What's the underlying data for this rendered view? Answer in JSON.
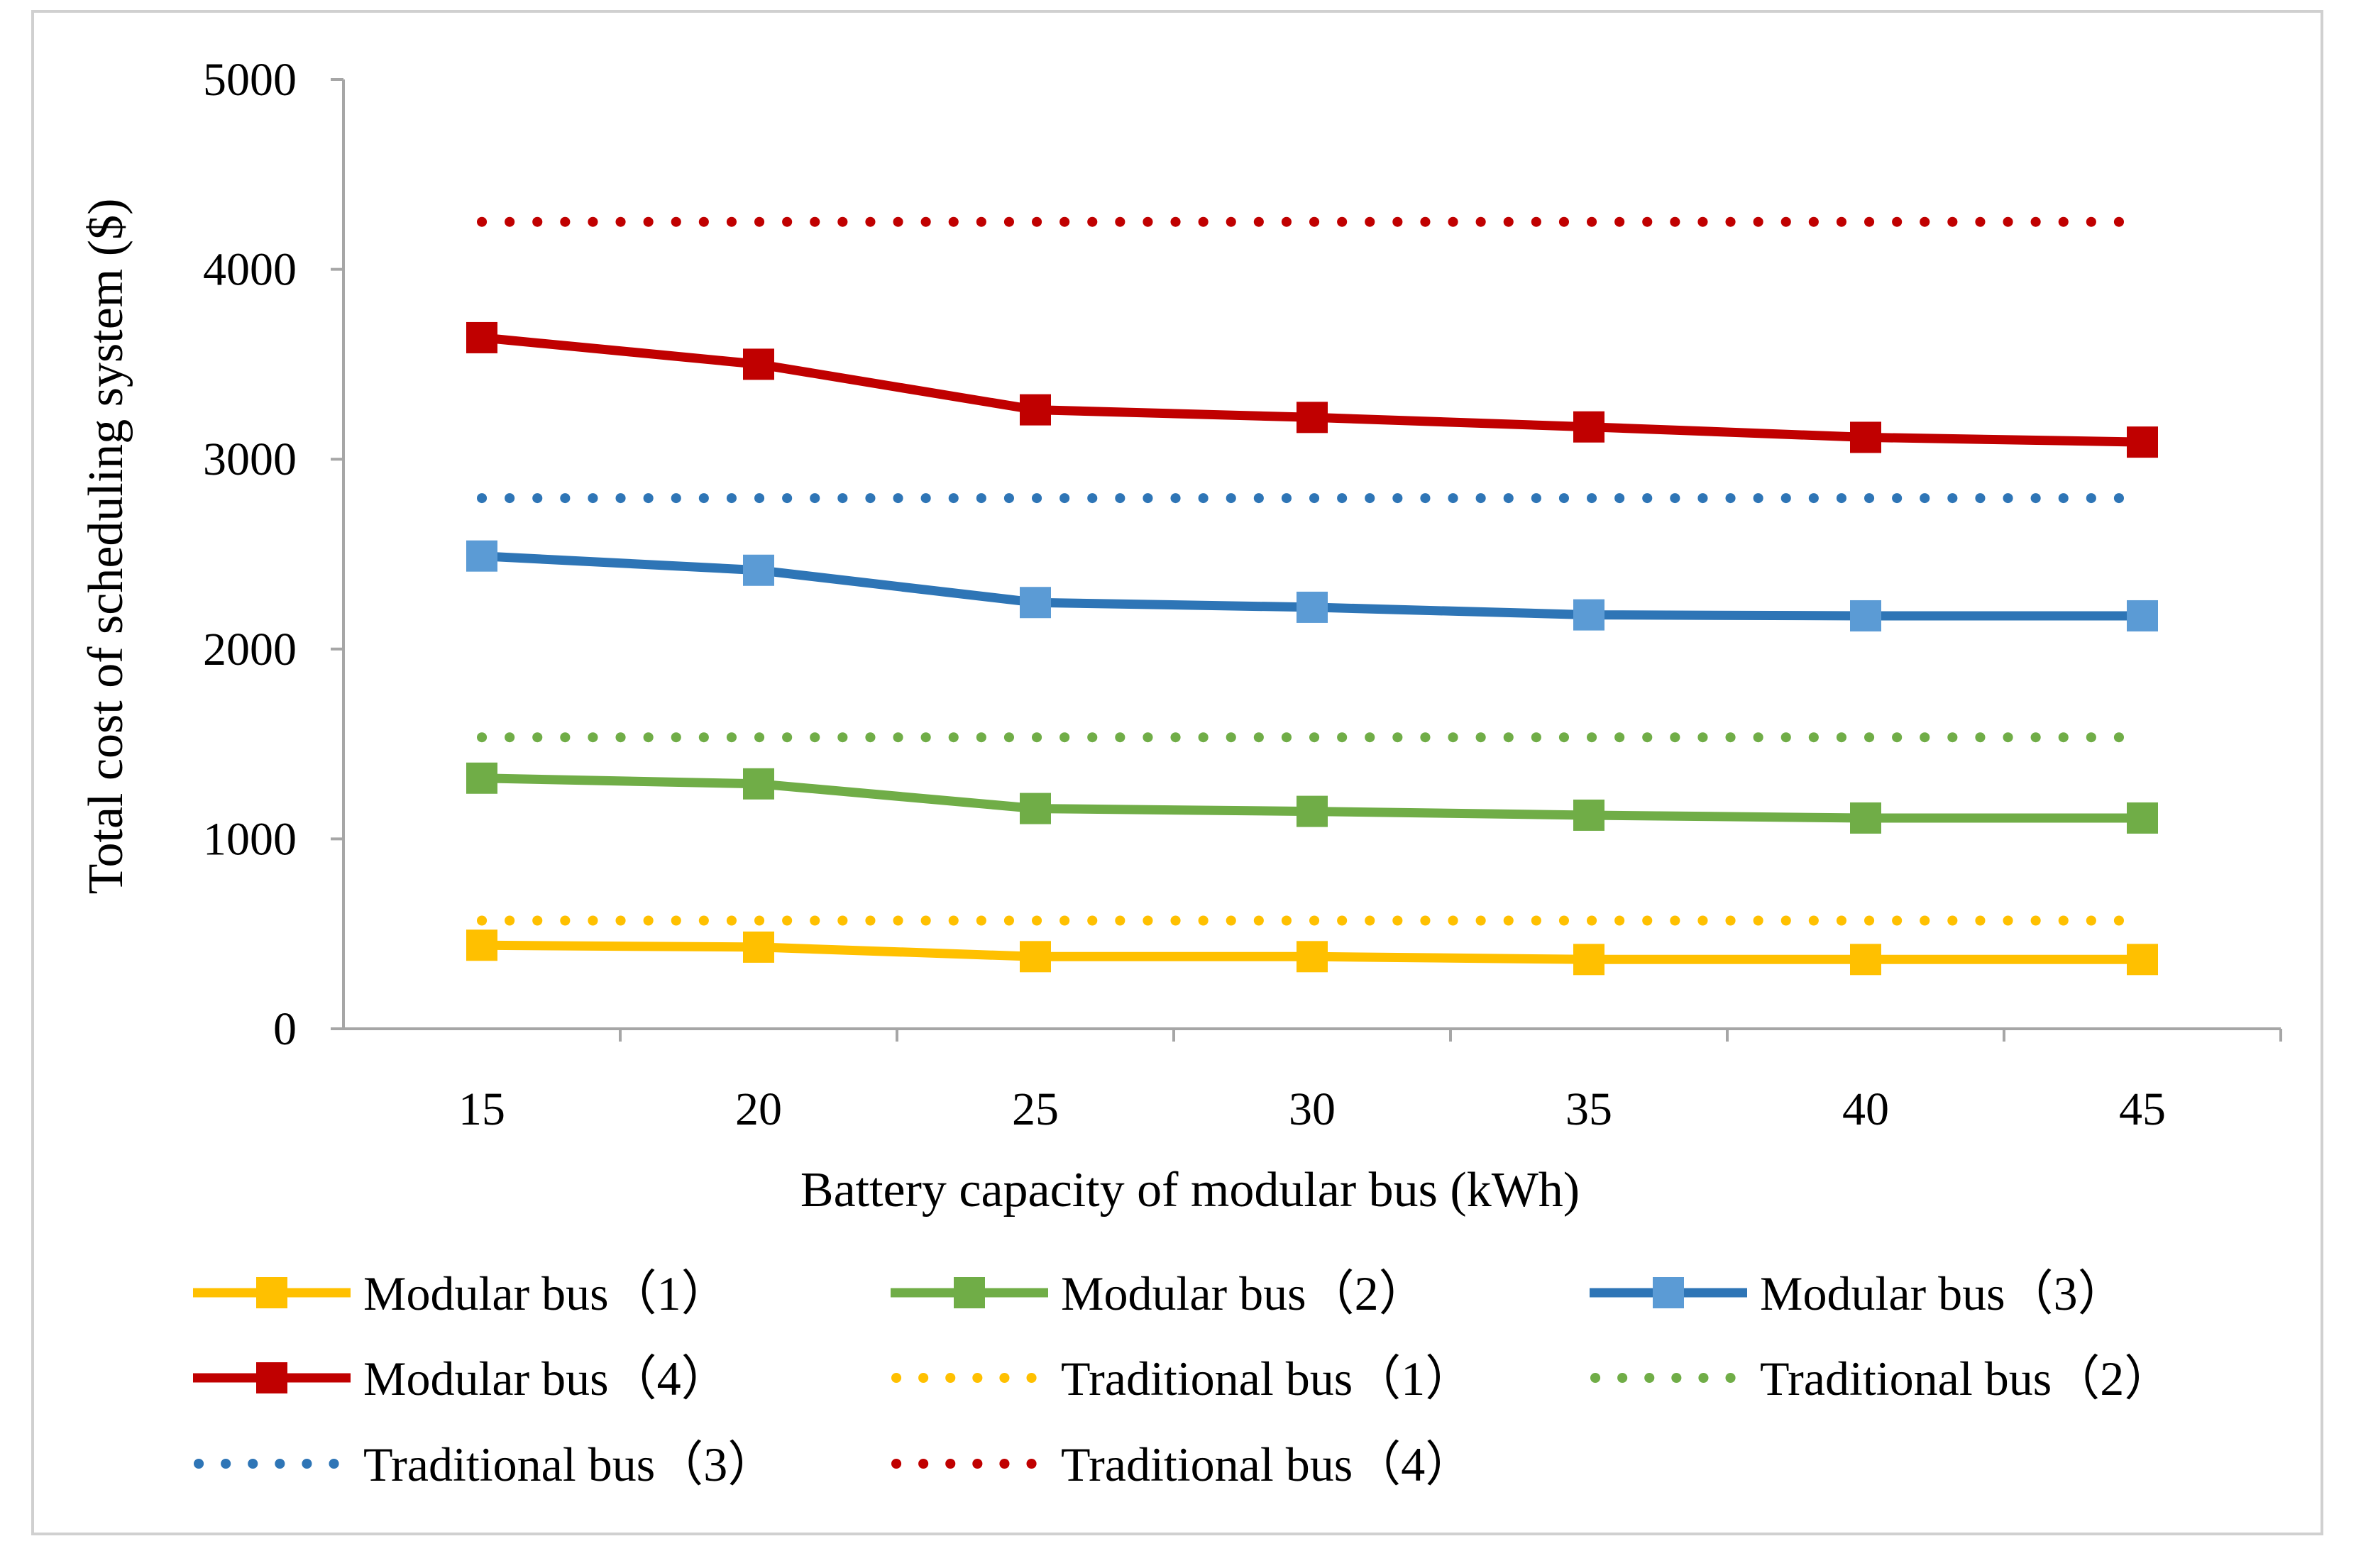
{
  "chart_data": {
    "type": "line",
    "xlabel": "Battery capacity of modular bus (kWh)",
    "ylabel": "Total cost of scheduling system ($)",
    "categories": [
      "15",
      "20",
      "25",
      "30",
      "35",
      "40",
      "45"
    ],
    "ylim": [
      0,
      5000
    ],
    "yticks": [
      "0",
      "1000",
      "2000",
      "3000",
      "4000",
      "5000"
    ],
    "legend_position": "bottom",
    "series": [
      {
        "name": "Modular bus（1）",
        "style": "solid-square",
        "color": "#FFC000",
        "values": [
          440,
          430,
          380,
          380,
          365,
          365,
          365
        ]
      },
      {
        "name": "Modular bus（2）",
        "style": "solid-square",
        "color": "#70AD47",
        "values": [
          1320,
          1290,
          1160,
          1145,
          1125,
          1110,
          1110
        ]
      },
      {
        "name": "Modular bus（3）",
        "style": "solid-square",
        "color": "#2E75B6",
        "marker_color": "#5B9BD5",
        "values": [
          2490,
          2415,
          2245,
          2220,
          2180,
          2175,
          2175
        ]
      },
      {
        "name": "Modular bus（4）",
        "style": "solid-square",
        "color": "#C00000",
        "values": [
          3640,
          3500,
          3260,
          3220,
          3170,
          3115,
          3090
        ]
      },
      {
        "name": "Traditional bus（1）",
        "style": "dotted",
        "color": "#FFC000",
        "values": [
          570,
          570,
          570,
          570,
          570,
          570,
          570
        ]
      },
      {
        "name": "Traditional bus（2）",
        "style": "dotted",
        "color": "#70AD47",
        "values": [
          1535,
          1535,
          1535,
          1535,
          1535,
          1535,
          1535
        ]
      },
      {
        "name": "Traditional bus（3）",
        "style": "dotted",
        "color": "#2E75B6",
        "values": [
          2795,
          2795,
          2795,
          2795,
          2795,
          2795,
          2795
        ]
      },
      {
        "name": "Traditional bus（4）",
        "style": "dotted",
        "color": "#C00000",
        "values": [
          4250,
          4250,
          4250,
          4250,
          4250,
          4250,
          4250
        ]
      }
    ]
  }
}
